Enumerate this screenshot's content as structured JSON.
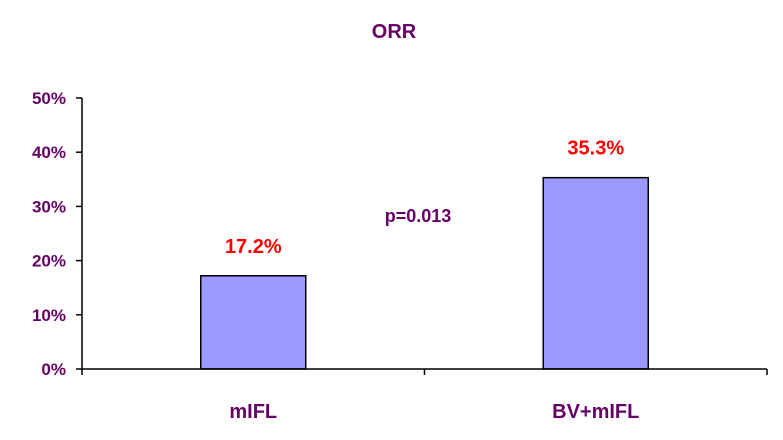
{
  "chart_data": {
    "type": "bar",
    "title": "ORR",
    "xlabel": "",
    "ylabel": "",
    "categories": [
      "mIFL",
      "BV+mIFL"
    ],
    "values": [
      17.2,
      35.3
    ],
    "data_labels": [
      "17.2%",
      "35.3%"
    ],
    "ylim": [
      0,
      50
    ],
    "yticks": [
      0,
      10,
      20,
      30,
      40,
      50
    ],
    "ytick_labels": [
      "0%",
      "10%",
      "20%",
      "30%",
      "40%",
      "50%"
    ],
    "annotation": "p=0.013",
    "grid": false,
    "legend": "none",
    "colors": {
      "bar_fill": "#9999ff",
      "bar_stroke": "#000000",
      "axis_text": "#660066",
      "data_label": "#ff0000",
      "annotation": "#660066",
      "axis_line": "#000000"
    }
  }
}
